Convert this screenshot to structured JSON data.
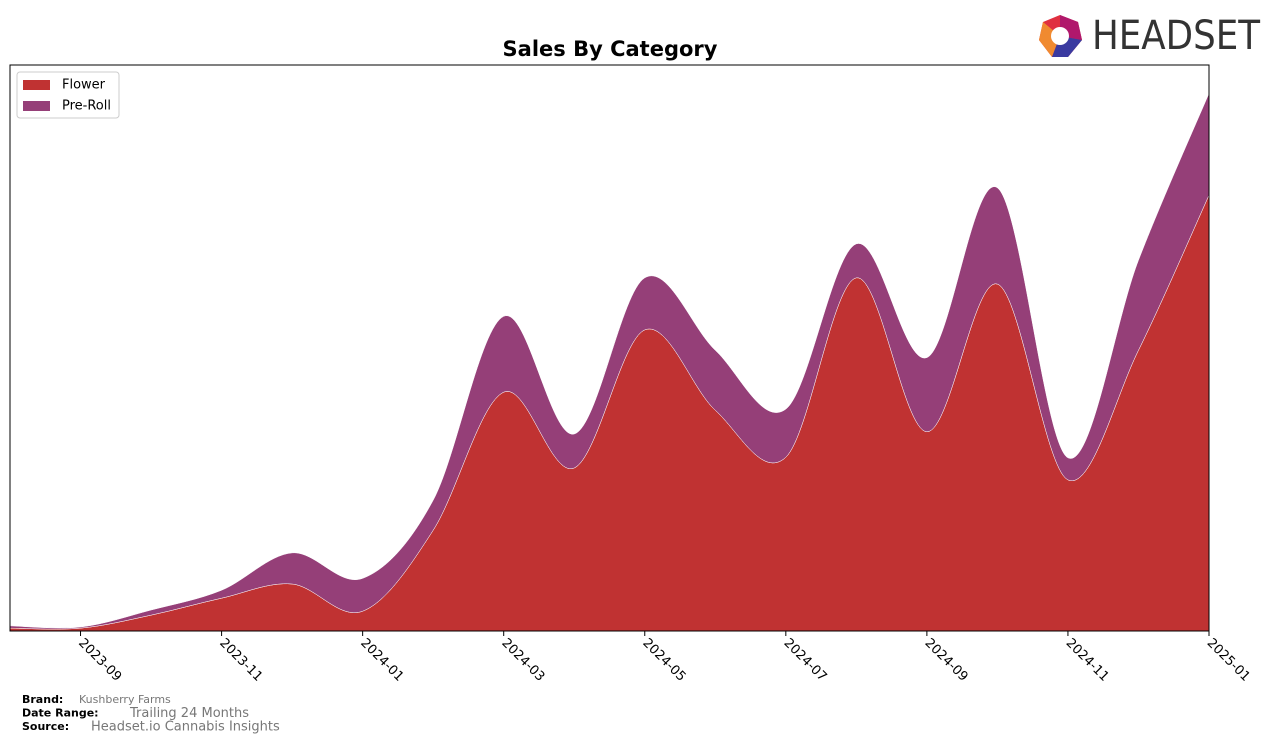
{
  "chart_data": {
    "type": "stacked-area",
    "title": "Sales By Category",
    "x": [
      "2023-08",
      "2023-09",
      "2023-10",
      "2023-11",
      "2023-12",
      "2024-01",
      "2024-02",
      "2024-03",
      "2024-04",
      "2024-05",
      "2024-06",
      "2024-07",
      "2024-08",
      "2024-09",
      "2024-10",
      "2024-11",
      "2024-12",
      "2025-01"
    ],
    "series": [
      {
        "name": "Flower",
        "color": "#c03232",
        "values": [
          0.5,
          0.5,
          2.8,
          5.8,
          8.3,
          3.5,
          17.8,
          42.2,
          28.8,
          53.2,
          39.0,
          30.7,
          62.4,
          35.2,
          61.3,
          26.7,
          49.6,
          77.0
        ]
      },
      {
        "name": "Pre-Roll",
        "color": "#953f78",
        "values": [
          0.4,
          0.2,
          0.9,
          1.4,
          5.5,
          5.8,
          5.3,
          13.4,
          6.0,
          9.2,
          10.6,
          8.5,
          6.0,
          13.1,
          17.0,
          3.9,
          15.9,
          18.0
        ]
      }
    ],
    "xlim": [
      "2023-08",
      "2025-01"
    ],
    "xticks": [
      "2023-09",
      "2023-11",
      "2024-01",
      "2024-03",
      "2024-05",
      "2024-07",
      "2024-09",
      "2024-11",
      "2025-01"
    ],
    "ylim": [
      0,
      100
    ],
    "legend": "upper-left"
  },
  "logo_text": "HEADSET",
  "footer": [
    {
      "label": "Brand:",
      "value": "Kushberry Farms"
    },
    {
      "label": "Date Range:",
      "value": "Trailing 24 Months"
    },
    {
      "label": "Source:",
      "value": "Headset.io Cannabis Insights"
    }
  ]
}
